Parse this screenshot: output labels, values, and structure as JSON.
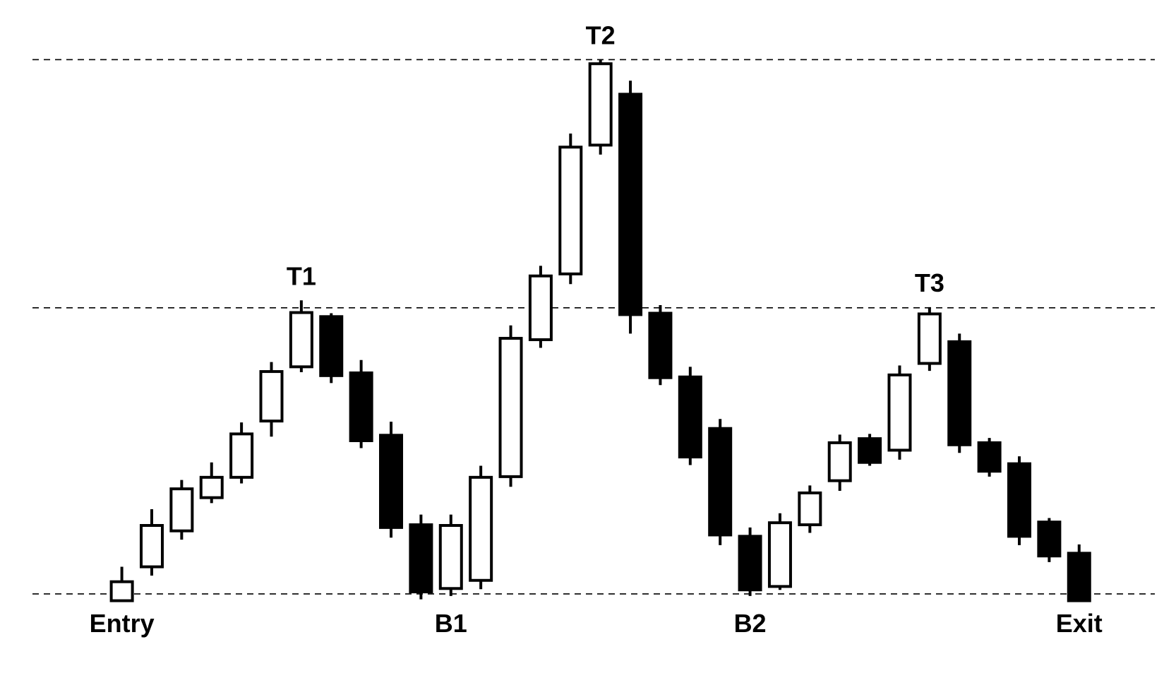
{
  "chart_data": {
    "type": "candlestick",
    "title": "",
    "xlabel": "",
    "ylabel": "",
    "colors": {
      "up_fill": "#ffffff",
      "down_fill": "#000000",
      "stroke": "#000000",
      "guide": "#000000"
    },
    "ylim": [
      0,
      100
    ],
    "reference_lines": [
      {
        "name": "top-line",
        "value": 91.2
      },
      {
        "name": "middle-line",
        "value": 54.6
      },
      {
        "name": "bottom-line",
        "value": 12.4
      }
    ],
    "candles": [
      {
        "open": 11.4,
        "high": 16.4,
        "low": 11.4,
        "close": 14.2
      },
      {
        "open": 16.4,
        "high": 24.9,
        "low": 15.1,
        "close": 22.5
      },
      {
        "open": 21.7,
        "high": 29.2,
        "low": 20.4,
        "close": 27.9
      },
      {
        "open": 26.6,
        "high": 31.8,
        "low": 25.8,
        "close": 29.6
      },
      {
        "open": 29.6,
        "high": 37.7,
        "low": 28.7,
        "close": 36.0
      },
      {
        "open": 37.9,
        "high": 46.6,
        "low": 35.6,
        "close": 45.2
      },
      {
        "open": 45.9,
        "high": 55.7,
        "low": 45.1,
        "close": 53.9
      },
      {
        "open": 53.3,
        "high": 53.8,
        "low": 43.5,
        "close": 44.6
      },
      {
        "open": 45.0,
        "high": 46.9,
        "low": 33.9,
        "close": 35.0
      },
      {
        "open": 35.8,
        "high": 37.8,
        "low": 20.7,
        "close": 22.2
      },
      {
        "open": 22.6,
        "high": 24.1,
        "low": 11.6,
        "close": 12.7
      },
      {
        "open": 13.2,
        "high": 24.1,
        "low": 12.1,
        "close": 22.5
      },
      {
        "open": 14.4,
        "high": 31.3,
        "low": 13.1,
        "close": 29.6
      },
      {
        "open": 29.7,
        "high": 52.0,
        "low": 28.2,
        "close": 50.1
      },
      {
        "open": 49.9,
        "high": 60.8,
        "low": 48.7,
        "close": 59.3
      },
      {
        "open": 59.6,
        "high": 80.3,
        "low": 58.1,
        "close": 78.3
      },
      {
        "open": 78.6,
        "high": 91.2,
        "low": 77.2,
        "close": 90.6
      },
      {
        "open": 86.1,
        "high": 88.1,
        "low": 50.8,
        "close": 53.6
      },
      {
        "open": 53.8,
        "high": 55.0,
        "low": 43.2,
        "close": 44.3
      },
      {
        "open": 44.4,
        "high": 45.9,
        "low": 31.4,
        "close": 32.6
      },
      {
        "open": 36.8,
        "high": 38.2,
        "low": 19.6,
        "close": 21.1
      },
      {
        "open": 20.9,
        "high": 22.2,
        "low": 12.1,
        "close": 13.0
      },
      {
        "open": 13.5,
        "high": 24.3,
        "low": 13.0,
        "close": 22.9
      },
      {
        "open": 22.6,
        "high": 28.4,
        "low": 21.4,
        "close": 27.3
      },
      {
        "open": 29.1,
        "high": 35.9,
        "low": 27.6,
        "close": 34.7
      },
      {
        "open": 35.3,
        "high": 36.0,
        "low": 31.3,
        "close": 31.8
      },
      {
        "open": 33.6,
        "high": 46.1,
        "low": 32.2,
        "close": 44.7
      },
      {
        "open": 46.4,
        "high": 54.7,
        "low": 45.3,
        "close": 53.7
      },
      {
        "open": 49.6,
        "high": 50.8,
        "low": 33.2,
        "close": 34.4
      },
      {
        "open": 34.7,
        "high": 35.4,
        "low": 29.7,
        "close": 30.5
      },
      {
        "open": 31.6,
        "high": 32.7,
        "low": 19.6,
        "close": 20.9
      },
      {
        "open": 23.0,
        "high": 23.6,
        "low": 17.1,
        "close": 18.0
      },
      {
        "open": 18.4,
        "high": 19.7,
        "low": 11.4,
        "close": 11.4
      }
    ],
    "annotations": [
      {
        "text": "T1",
        "candle": 6,
        "position": "above"
      },
      {
        "text": "T2",
        "candle": 16,
        "position": "above"
      },
      {
        "text": "T3",
        "candle": 27,
        "position": "above"
      },
      {
        "text": "Entry",
        "candle": 0,
        "position": "below"
      },
      {
        "text": "B1",
        "candle": 11,
        "position": "below"
      },
      {
        "text": "B2",
        "candle": 21,
        "position": "below"
      },
      {
        "text": "Exit",
        "candle": 32,
        "position": "below"
      }
    ]
  }
}
